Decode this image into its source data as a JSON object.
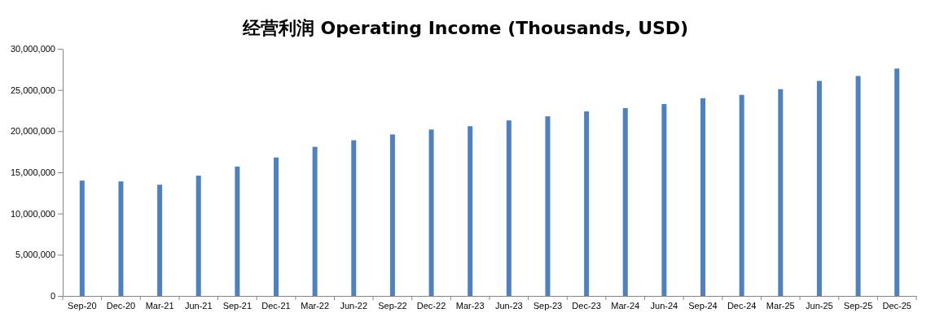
{
  "chart_data": {
    "type": "bar",
    "title": "经营利润 Operating Income (Thousands, USD)",
    "categories": [
      "Sep-20",
      "Dec-20",
      "Mar-21",
      "Jun-21",
      "Sep-21",
      "Dec-21",
      "Mar-22",
      "Jun-22",
      "Sep-22",
      "Dec-22",
      "Mar-23",
      "Jun-23",
      "Sep-23",
      "Dec-23",
      "Mar-24",
      "Jun-24",
      "Sep-24",
      "Dec-24",
      "Mar-25",
      "Jun-25",
      "Sep-25",
      "Dec-25"
    ],
    "values": [
      14000000,
      13900000,
      13500000,
      14600000,
      15700000,
      16800000,
      18100000,
      18900000,
      19600000,
      20200000,
      20600000,
      21300000,
      21800000,
      22400000,
      22800000,
      23300000,
      24000000,
      24400000,
      25100000,
      26100000,
      26700000,
      27600000
    ],
    "color": "#4f81bd",
    "ylim": [
      0,
      30000000
    ],
    "yticks": [
      {
        "value": 0,
        "label": "0"
      },
      {
        "value": 5000000,
        "label": "5,000,000"
      },
      {
        "value": 10000000,
        "label": "10,000,000"
      },
      {
        "value": 15000000,
        "label": "15,000,000"
      },
      {
        "value": 20000000,
        "label": "20,000,000"
      },
      {
        "value": 25000000,
        "label": "25,000,000"
      },
      {
        "value": 30000000,
        "label": "30,000,000"
      }
    ],
    "grid": false,
    "legend": false
  }
}
